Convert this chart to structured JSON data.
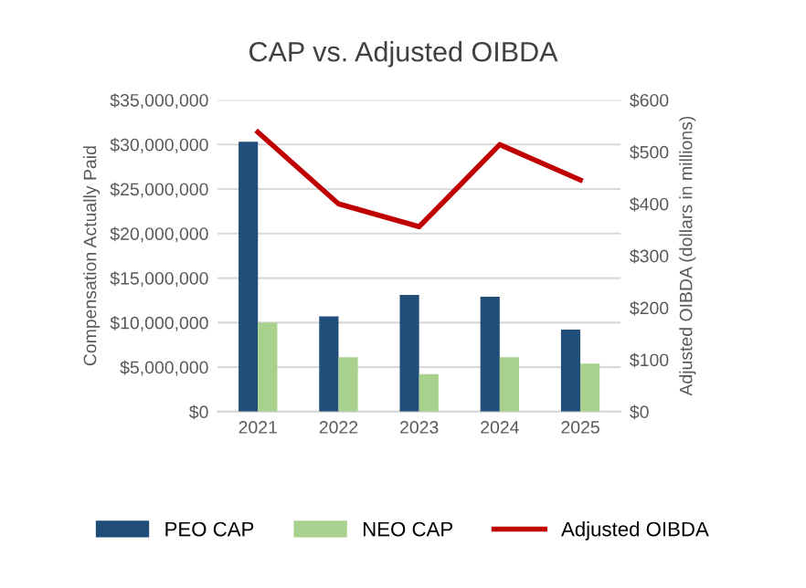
{
  "chart_data": {
    "type": "bar",
    "title": "CAP vs. Adjusted OIBDA",
    "ylabel": "Compensation Actually Paid",
    "y2label": "Adjusted OIBDA (dollars in millions)",
    "categories": [
      "2021",
      "2022",
      "2023",
      "2024",
      "2025"
    ],
    "series": [
      {
        "name": "PEO CAP",
        "color": "#1f4e79",
        "values": [
          30300000,
          10700000,
          13100000,
          12900000,
          9200000
        ]
      },
      {
        "name": "NEO CAP",
        "color": "#a9d18e",
        "values": [
          10000000,
          6100000,
          4200000,
          6100000,
          5400000
        ]
      },
      {
        "name": "Adjusted OIBDA",
        "type": "line",
        "axis": "y2",
        "color": "#c00000",
        "values": [
          538,
          400,
          356,
          514,
          446
        ]
      }
    ],
    "ylim": [
      0,
      35000000
    ],
    "yticks": [
      {
        "value": 0,
        "label": "$0"
      },
      {
        "value": 5000000,
        "label": "$5,000,000"
      },
      {
        "value": 10000000,
        "label": "$10,000,000"
      },
      {
        "value": 15000000,
        "label": "$15,000,000"
      },
      {
        "value": 20000000,
        "label": "$20,000,000"
      },
      {
        "value": 25000000,
        "label": "$25,000,000"
      },
      {
        "value": 30000000,
        "label": "$30,000,000"
      },
      {
        "value": 35000000,
        "label": "$35,000,000"
      }
    ],
    "y2lim": [
      0,
      600
    ],
    "y2ticks": [
      {
        "value": 0,
        "label": "$0"
      },
      {
        "value": 100,
        "label": "$100"
      },
      {
        "value": 200,
        "label": "$200"
      },
      {
        "value": 300,
        "label": "$300"
      },
      {
        "value": 400,
        "label": "$400"
      },
      {
        "value": 500,
        "label": "$500"
      },
      {
        "value": 600,
        "label": "$600"
      }
    ],
    "grid": "y",
    "legend": "bottom"
  }
}
